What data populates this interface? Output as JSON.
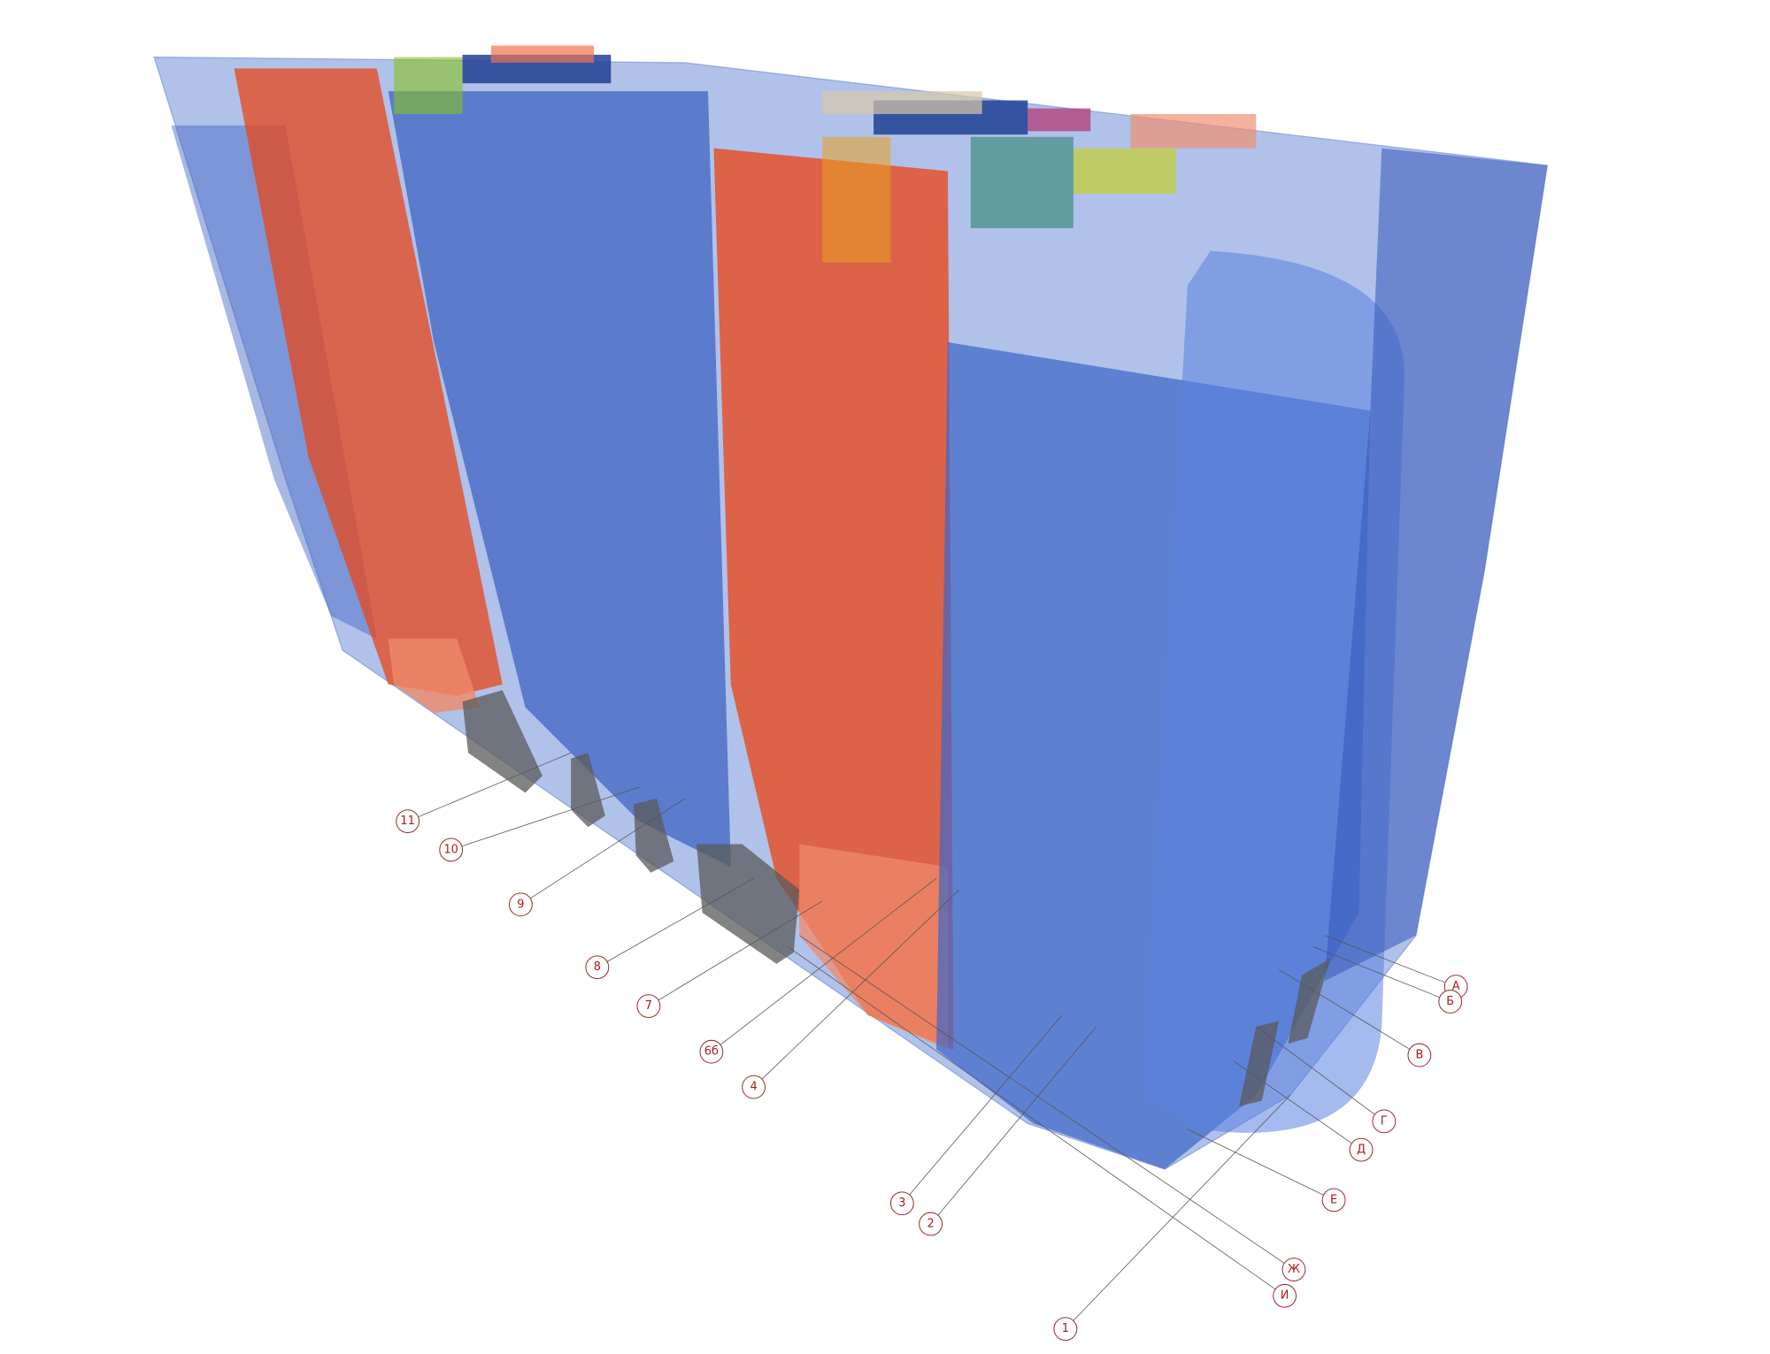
{
  "grid_axes": {
    "letters": [
      "А",
      "Б",
      "В",
      "Г",
      "Д",
      "Е",
      "Ж",
      "И"
    ],
    "numbers": [
      "1",
      "2",
      "3",
      "4",
      "6б",
      "7",
      "8",
      "9",
      "10",
      "11"
    ]
  }
}
